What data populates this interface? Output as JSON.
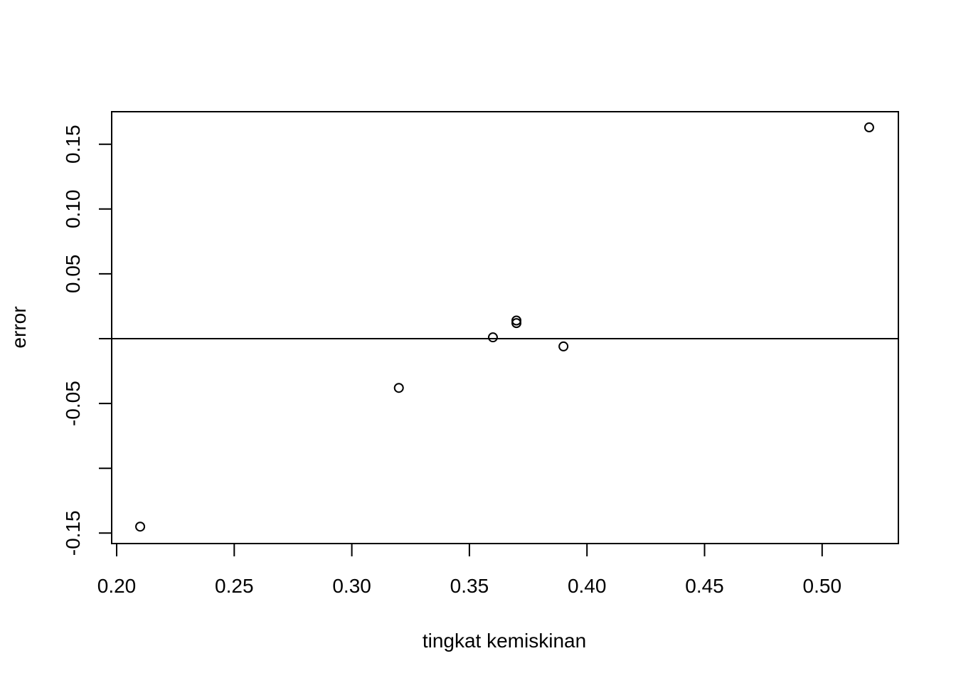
{
  "chart_data": {
    "type": "scatter",
    "title": "",
    "xlabel": "tingkat kemiskinan",
    "ylabel": "error",
    "xlim": [
      0.2,
      0.53
    ],
    "ylim": [
      -0.1575,
      0.175
    ],
    "x_ticks": [
      0.2,
      0.25,
      0.3,
      0.35,
      0.4,
      0.45,
      0.5
    ],
    "x_tick_labels": [
      "0.20",
      "0.25",
      "0.30",
      "0.35",
      "0.40",
      "0.45",
      "0.50"
    ],
    "y_ticks": [
      -0.15,
      -0.1,
      -0.05,
      0.0,
      0.05,
      0.1,
      0.15
    ],
    "y_tick_labels": [
      "-0.15",
      "",
      "-0.05",
      "",
      "0.05",
      "0.10",
      "0.15"
    ],
    "hline": 0,
    "grid": false,
    "points": [
      {
        "x": 0.21,
        "y": -0.145
      },
      {
        "x": 0.32,
        "y": -0.038
      },
      {
        "x": 0.36,
        "y": 0.001
      },
      {
        "x": 0.37,
        "y": 0.014
      },
      {
        "x": 0.37,
        "y": 0.012
      },
      {
        "x": 0.39,
        "y": -0.006
      },
      {
        "x": 0.52,
        "y": 0.163
      }
    ]
  }
}
